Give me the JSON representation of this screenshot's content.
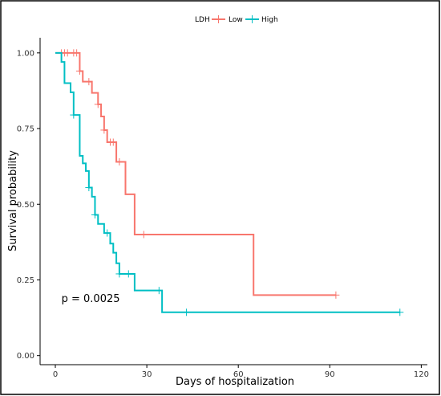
{
  "chart_data": {
    "type": "line",
    "subtype": "kaplan-meier-step",
    "xlabel": "Days of hospitalization",
    "ylabel": "Survival probability",
    "xlim": [
      -5,
      122
    ],
    "ylim": [
      -0.03,
      1.05
    ],
    "x_ticks": [
      0,
      30,
      60,
      90,
      120
    ],
    "y_ticks": [
      0.0,
      0.25,
      0.5,
      0.75,
      1.0
    ],
    "y_tick_labels": [
      "0.00",
      "0.25",
      "0.50",
      "0.75",
      "1.00"
    ],
    "grid": false,
    "legend": {
      "title": "LDH",
      "placement": "top",
      "entries": [
        {
          "label": "Low",
          "color": "#F8766D"
        },
        {
          "label": "High",
          "color": "#00BFC4"
        }
      ]
    },
    "annotations": [
      {
        "text": "p = 0.0025",
        "x": 2,
        "y": 0.19
      }
    ],
    "series": [
      {
        "name": "Low",
        "color": "#F8766D",
        "steps": [
          [
            0,
            1.0
          ],
          [
            8,
            0.94
          ],
          [
            9,
            0.905
          ],
          [
            12,
            0.868
          ],
          [
            14,
            0.83
          ],
          [
            15,
            0.79
          ],
          [
            16,
            0.745
          ],
          [
            17,
            0.705
          ],
          [
            20,
            0.64
          ],
          [
            23,
            0.533
          ],
          [
            26,
            0.4
          ],
          [
            65,
            0.2
          ],
          [
            92,
            0.2
          ]
        ],
        "censor": [
          [
            2,
            1.0
          ],
          [
            3,
            1.0
          ],
          [
            4,
            1.0
          ],
          [
            6,
            1.0
          ],
          [
            7,
            1.0
          ],
          [
            8,
            0.94
          ],
          [
            11,
            0.905
          ],
          [
            14,
            0.83
          ],
          [
            16,
            0.745
          ],
          [
            18,
            0.705
          ],
          [
            19,
            0.705
          ],
          [
            21,
            0.64
          ],
          [
            29,
            0.4
          ],
          [
            92,
            0.2
          ]
        ]
      },
      {
        "name": "High",
        "color": "#00BFC4",
        "steps": [
          [
            0,
            1.0
          ],
          [
            2,
            0.97
          ],
          [
            3,
            0.9
          ],
          [
            5,
            0.87
          ],
          [
            6,
            0.795
          ],
          [
            8,
            0.66
          ],
          [
            9,
            0.635
          ],
          [
            10,
            0.61
          ],
          [
            11,
            0.555
          ],
          [
            12,
            0.525
          ],
          [
            13,
            0.465
          ],
          [
            14,
            0.435
          ],
          [
            16,
            0.405
          ],
          [
            18,
            0.37
          ],
          [
            19,
            0.34
          ],
          [
            20,
            0.305
          ],
          [
            21,
            0.27
          ],
          [
            26,
            0.215
          ],
          [
            35,
            0.143
          ],
          [
            113,
            0.143
          ]
        ],
        "censor": [
          [
            6,
            0.795
          ],
          [
            11,
            0.555
          ],
          [
            13,
            0.465
          ],
          [
            17,
            0.405
          ],
          [
            21,
            0.27
          ],
          [
            24,
            0.27
          ],
          [
            34,
            0.215
          ],
          [
            43,
            0.143
          ],
          [
            113,
            0.143
          ]
        ]
      }
    ]
  }
}
